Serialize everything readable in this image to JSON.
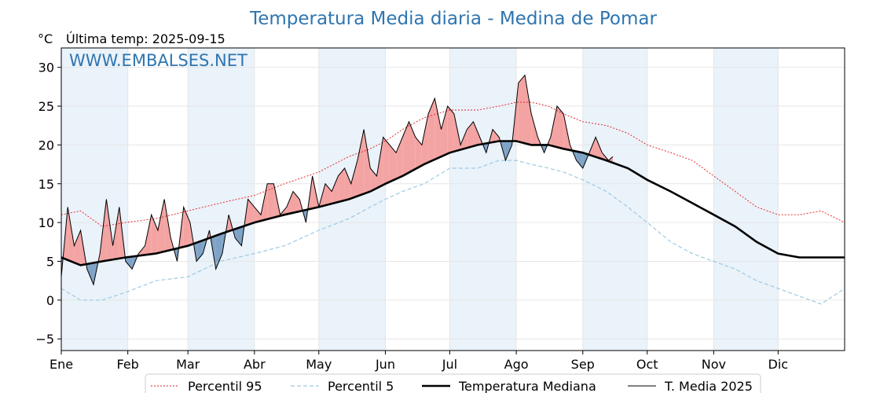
{
  "chart_data": {
    "type": "line",
    "title": "Temperatura Media diaria - Medina de Pomar",
    "ylabel": "°C",
    "last_temp_label": "Última temp: 2025-09-15",
    "watermark": "WWW.EMBALSES.NET",
    "xlabel": "",
    "ylim": [
      -6.5,
      32.5
    ],
    "yticks": [
      -5,
      0,
      5,
      10,
      15,
      20,
      25,
      30
    ],
    "xlim_days": [
      1,
      366
    ],
    "month_ticks": [
      {
        "day": 1,
        "label": "Ene"
      },
      {
        "day": 32,
        "label": "Feb"
      },
      {
        "day": 60,
        "label": "Mar"
      },
      {
        "day": 91,
        "label": "Abr"
      },
      {
        "day": 121,
        "label": "May"
      },
      {
        "day": 152,
        "label": "Jun"
      },
      {
        "day": 182,
        "label": "Jul"
      },
      {
        "day": 213,
        "label": "Ago"
      },
      {
        "day": 244,
        "label": "Sep"
      },
      {
        "day": 274,
        "label": "Oct"
      },
      {
        "day": 305,
        "label": "Nov"
      },
      {
        "day": 335,
        "label": "Dic"
      }
    ],
    "grid": true,
    "legend_position": "bottom",
    "colors": {
      "title": "#2e75b0",
      "watermark": "#2e75b0",
      "p95": "#e31a1c",
      "p5": "#9ecae1",
      "median": "#000000",
      "year": "#000000",
      "above_fill": "#f4a3a3",
      "below_fill": "#7fa3c6",
      "band_fill": "#eaf2fa"
    },
    "series": [
      {
        "name": "Percentil 95",
        "style": "dotted",
        "x": [
          1,
          10,
          20,
          31,
          45,
          60,
          75,
          91,
          105,
          121,
          135,
          145,
          152,
          160,
          170,
          182,
          195,
          205,
          213,
          220,
          228,
          235,
          244,
          255,
          265,
          274,
          285,
          295,
          305,
          315,
          325,
          335,
          345,
          355,
          366
        ],
        "y": [
          11,
          11.5,
          9.5,
          10,
          10.5,
          11.5,
          12.5,
          13.5,
          15,
          16.5,
          18.5,
          19.5,
          20.5,
          22,
          23.5,
          24.5,
          24.5,
          25,
          25.5,
          25.5,
          25,
          24,
          23,
          22.5,
          21.5,
          20,
          19,
          18,
          16,
          14,
          12,
          11,
          11,
          11.5,
          10
        ]
      },
      {
        "name": "Percentil 5",
        "style": "dashed",
        "x": [
          1,
          10,
          20,
          31,
          45,
          60,
          75,
          91,
          105,
          121,
          135,
          145,
          152,
          160,
          170,
          182,
          195,
          205,
          213,
          220,
          228,
          235,
          244,
          255,
          265,
          274,
          285,
          295,
          305,
          315,
          325,
          335,
          345,
          355,
          366
        ],
        "y": [
          1.5,
          0,
          0,
          1,
          2.5,
          3,
          5,
          6,
          7,
          9,
          10.5,
          12,
          13,
          14,
          15,
          17,
          17,
          18,
          18,
          17.5,
          17,
          16.5,
          15.5,
          14,
          12,
          10,
          7.5,
          6,
          5,
          4,
          2.5,
          1.5,
          0.5,
          -0.5,
          1.5
        ]
      },
      {
        "name": "Temperatura Mediana",
        "style": "bold",
        "x": [
          1,
          10,
          20,
          31,
          45,
          60,
          75,
          91,
          105,
          121,
          135,
          145,
          152,
          160,
          170,
          182,
          195,
          205,
          213,
          220,
          228,
          235,
          244,
          255,
          265,
          274,
          285,
          295,
          305,
          315,
          325,
          335,
          345,
          355,
          366
        ],
        "y": [
          5.5,
          4.5,
          5,
          5.5,
          6,
          7,
          8.5,
          10,
          11,
          12,
          13,
          14,
          15,
          16,
          17.5,
          19,
          20,
          20.5,
          20.5,
          20,
          20,
          19.5,
          19,
          18,
          17,
          15.5,
          14,
          12.5,
          11,
          9.5,
          7.5,
          6,
          5.5,
          5.5,
          5.5
        ]
      },
      {
        "name": "T. Media 2025",
        "style": "thin",
        "x": [
          1,
          4,
          7,
          10,
          13,
          16,
          19,
          22,
          25,
          28,
          31,
          34,
          37,
          40,
          43,
          46,
          49,
          52,
          55,
          58,
          61,
          64,
          67,
          70,
          73,
          76,
          79,
          82,
          85,
          88,
          91,
          94,
          97,
          100,
          103,
          106,
          109,
          112,
          115,
          118,
          121,
          124,
          127,
          130,
          133,
          136,
          139,
          142,
          145,
          148,
          151,
          154,
          157,
          160,
          163,
          166,
          169,
          172,
          175,
          178,
          181,
          184,
          187,
          190,
          193,
          196,
          199,
          202,
          205,
          208,
          211,
          214,
          217,
          220,
          223,
          226,
          229,
          232,
          235,
          238,
          241,
          244,
          247,
          250,
          253,
          256,
          258
        ],
        "y": [
          3,
          12,
          7,
          9,
          4,
          2,
          6,
          13,
          7,
          12,
          5,
          4,
          6,
          7,
          11,
          9,
          13,
          8,
          5,
          12,
          10,
          5,
          6,
          9,
          4,
          6,
          11,
          8,
          7,
          13,
          12,
          11,
          15,
          15,
          11,
          12,
          14,
          13,
          10,
          16,
          12,
          15,
          14,
          16,
          17,
          15,
          18,
          22,
          17,
          16,
          21,
          20,
          19,
          21,
          23,
          21,
          20,
          24,
          26,
          22,
          25,
          24,
          20,
          22,
          23,
          21,
          19,
          22,
          21,
          18,
          20,
          28,
          29,
          24,
          21,
          19,
          21,
          25,
          24,
          20,
          18,
          17,
          19,
          21,
          19,
          18,
          18.5
        ]
      }
    ],
    "legend": [
      "Percentil 95",
      "Percentil 5",
      "Temperatura Mediana",
      "T. Media 2025"
    ]
  }
}
